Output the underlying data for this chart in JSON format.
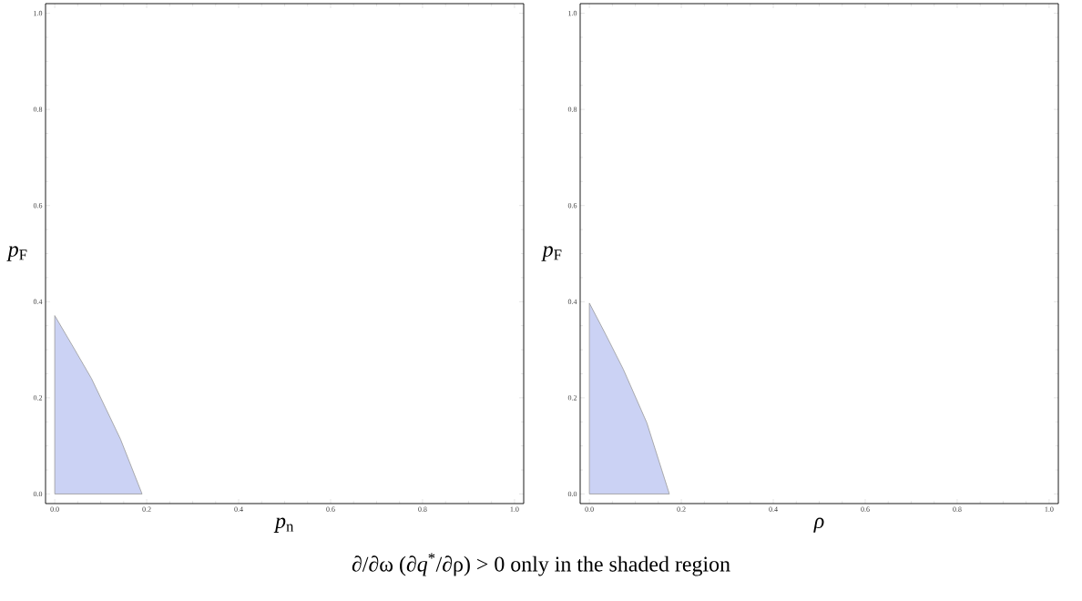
{
  "chart_data": [
    {
      "type": "area",
      "xlabel": "*p*$_{n}$",
      "ylabel": "*p*$_{F}$",
      "series": [
        {
          "color": "#cbd2f4",
          "x": [
            0,
            0.04,
            0.08,
            0.143,
            0.19
          ],
          "values": [
            0.371,
            0.306,
            0.24,
            0.114,
            0
          ]
        }
      ],
      "xlim": [
        -0.02,
        1.02
      ],
      "ylim": [
        -0.02,
        1.02
      ],
      "xticks": [
        {
          "value": 0,
          "label": "0.0"
        },
        {
          "value": 0.2,
          "label": "0.2"
        },
        {
          "value": 0.4,
          "label": "0.4"
        },
        {
          "value": 0.6,
          "label": "0.6"
        },
        {
          "value": 0.8,
          "label": "0.8"
        },
        {
          "value": 1,
          "label": "1.0"
        }
      ],
      "yticks": [
        {
          "value": 0,
          "label": "0.0"
        },
        {
          "value": 0.2,
          "label": "0.2"
        },
        {
          "value": 0.4,
          "label": "0.4"
        },
        {
          "value": 0.6,
          "label": "0.6"
        },
        {
          "value": 0.8,
          "label": "0.8"
        },
        {
          "value": 1,
          "label": "1.0"
        }
      ],
      "annotations": [
        "∂/∂ω (∂*q*$^{*}$/∂ρ) > 0 only in the shaded region"
      ]
    },
    {
      "type": "area",
      "xlabel": "*ρ*",
      "ylabel": "*p*$_{F}$",
      "series": [
        {
          "color": "#cbd2f4",
          "x": [
            0,
            0.036,
            0.074,
            0.125,
            0.174
          ],
          "values": [
            0.397,
            0.331,
            0.259,
            0.148,
            0
          ]
        }
      ],
      "xlim": [
        -0.02,
        1.02
      ],
      "ylim": [
        -0.02,
        1.02
      ],
      "xticks": [
        {
          "value": 0,
          "label": "0.0"
        },
        {
          "value": 0.2,
          "label": "0.2"
        },
        {
          "value": 0.4,
          "label": "0.4"
        },
        {
          "value": 0.6,
          "label": "0.6"
        },
        {
          "value": 0.8,
          "label": "0.8"
        },
        {
          "value": 1,
          "label": "1.0"
        }
      ],
      "yticks": [
        {
          "value": 0,
          "label": "0.0"
        },
        {
          "value": 0.2,
          "label": "0.2"
        },
        {
          "value": 0.4,
          "label": "0.4"
        },
        {
          "value": 0.6,
          "label": "0.6"
        },
        {
          "value": 0.8,
          "label": "0.8"
        },
        {
          "value": 1,
          "label": "1.0"
        }
      ]
    }
  ]
}
